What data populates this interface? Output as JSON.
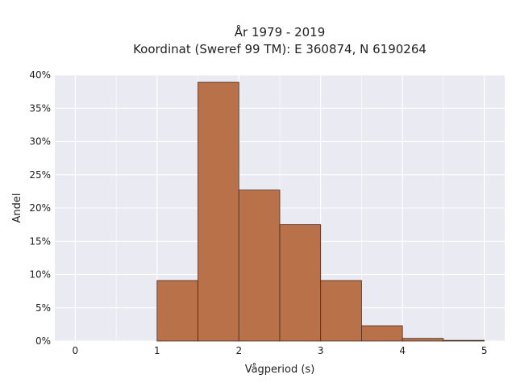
{
  "chart_data": {
    "type": "bar",
    "title": "År 1979 - 2019",
    "subtitle": "Koordinat (Sweref 99 TM): E 360874, N 6190264",
    "xlabel": "Vågperiod (s)",
    "ylabel": "Andel",
    "xlim": [
      -0.25,
      5.25
    ],
    "ylim": [
      0,
      0.4
    ],
    "x_ticks": [
      0,
      1,
      2,
      3,
      4,
      5
    ],
    "x_tick_labels": [
      "0",
      "1",
      "2",
      "3",
      "4",
      "5"
    ],
    "y_ticks": [
      0,
      0.05,
      0.1,
      0.15,
      0.2,
      0.25,
      0.3,
      0.35,
      0.4
    ],
    "y_tick_labels": [
      "0%",
      "5%",
      "10%",
      "15%",
      "20%",
      "25%",
      "30%",
      "35%",
      "40%"
    ],
    "bins": [
      {
        "start": 1.0,
        "end": 1.5,
        "value": 0.091
      },
      {
        "start": 1.5,
        "end": 2.0,
        "value": 0.389
      },
      {
        "start": 2.0,
        "end": 2.5,
        "value": 0.227
      },
      {
        "start": 2.5,
        "end": 3.0,
        "value": 0.175
      },
      {
        "start": 3.0,
        "end": 3.5,
        "value": 0.091
      },
      {
        "start": 3.5,
        "end": 4.0,
        "value": 0.023
      },
      {
        "start": 4.0,
        "end": 4.5,
        "value": 0.004
      },
      {
        "start": 4.5,
        "end": 5.0,
        "value": 0.001
      }
    ],
    "grid": true,
    "colors": {
      "bar_fill": "#b9714a",
      "bar_edge": "#4a2c1c",
      "plot_background": "#eaeaf2",
      "grid": "#ffffff"
    }
  }
}
